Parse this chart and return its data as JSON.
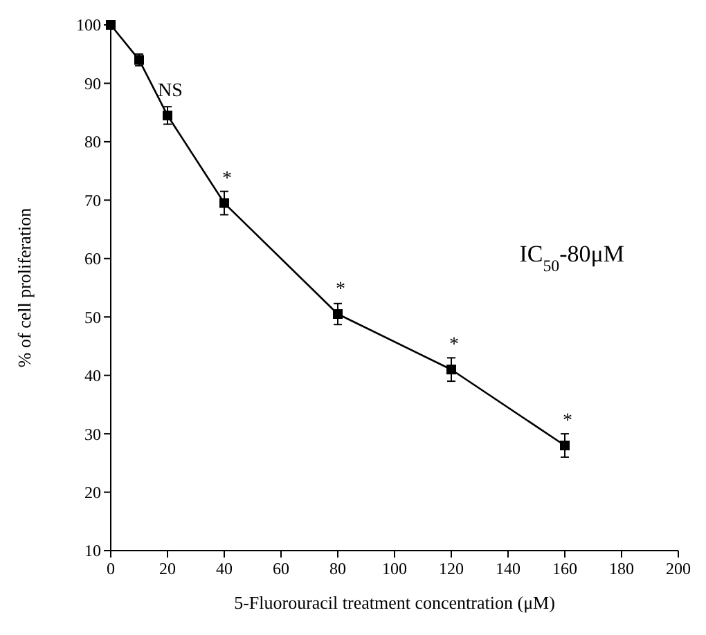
{
  "chart_data": {
    "type": "line",
    "xlabel": "5-Fluorouracil treatment concentration (μM)",
    "ylabel": "% of cell proliferation",
    "x": [
      0,
      10,
      20,
      40,
      80,
      120,
      160
    ],
    "series": [
      {
        "color": "#000000",
        "values": [
          100,
          94,
          84.5,
          69.5,
          50.5,
          41,
          28
        ],
        "errors": [
          null,
          1,
          1.5,
          2,
          1.8,
          2,
          2
        ]
      }
    ],
    "xlim": [
      0,
      200
    ],
    "xticks": [
      0,
      20,
      40,
      60,
      80,
      100,
      120,
      140,
      160,
      180,
      200
    ],
    "ylim": [
      10,
      100
    ],
    "yticks": [
      10,
      20,
      30,
      40,
      50,
      60,
      70,
      80,
      90,
      100
    ],
    "marker": "square",
    "line_style": "solid",
    "grid": false,
    "annotations": [
      {
        "text": "NS",
        "x": 20,
        "y": 84.5
      },
      {
        "text": "*",
        "x": 40,
        "y": 69.5
      },
      {
        "text": "*",
        "x": 80,
        "y": 50.5
      },
      {
        "text": "*",
        "x": 120,
        "y": 41
      },
      {
        "text": "*",
        "x": 160,
        "y": 28
      },
      "IC$_{50}$-80μM"
    ]
  }
}
